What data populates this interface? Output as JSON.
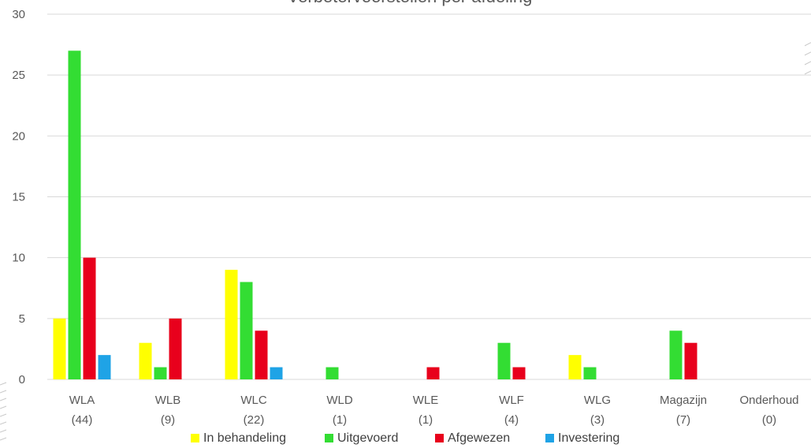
{
  "chart_data": {
    "type": "bar",
    "title": "Verbetervoorstellen per afdeling",
    "categories": [
      [
        "WLA",
        "(44)"
      ],
      [
        "WLB",
        "(9)"
      ],
      [
        "WLC",
        "(22)"
      ],
      [
        "WLD",
        "(1)"
      ],
      [
        "WLE",
        "(1)"
      ],
      [
        "WLF",
        "(4)"
      ],
      [
        "WLG",
        "(3)"
      ],
      [
        "Magazijn",
        "(7)"
      ],
      [
        "Onderhoud",
        "(0)"
      ]
    ],
    "series": [
      {
        "name": "In behandeling",
        "color": "#ffff00",
        "values": [
          5,
          3,
          9,
          0,
          0,
          0,
          2,
          0,
          0
        ]
      },
      {
        "name": "Uitgevoerd",
        "color": "#33dd33",
        "values": [
          27,
          1,
          8,
          1,
          0,
          3,
          1,
          4,
          0
        ]
      },
      {
        "name": "Afgewezen",
        "color": "#e8001c",
        "values": [
          10,
          5,
          4,
          0,
          1,
          1,
          0,
          3,
          0
        ]
      },
      {
        "name": "Investering",
        "color": "#1fa3e6",
        "values": [
          2,
          0,
          1,
          0,
          0,
          0,
          0,
          0,
          0
        ]
      }
    ],
    "yticks": [
      0,
      5,
      10,
      15,
      20,
      25,
      30
    ],
    "ylim": [
      0,
      30
    ],
    "grid": true,
    "legend_position": "bottom"
  }
}
